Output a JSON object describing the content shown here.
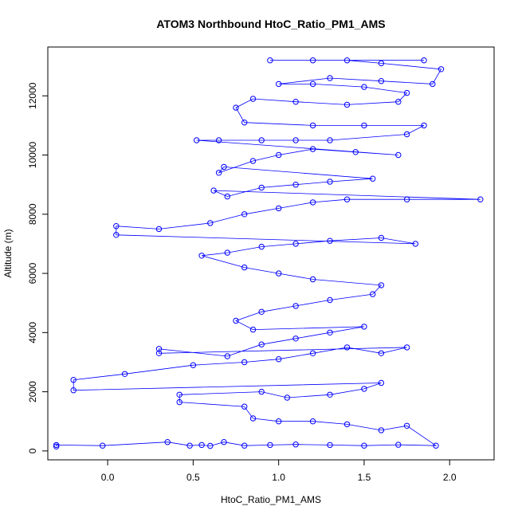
{
  "chart_data": {
    "type": "scatter",
    "title": "ATOM3 Northbound HtoC_Ratio_PM1_AMS",
    "xlabel": "HtoC_Ratio_PM1_AMS",
    "ylabel": "Altitude (m)",
    "xlim": [
      -0.35,
      2.26
    ],
    "ylim": [
      -300,
      13650
    ],
    "xticks": [
      0.0,
      0.5,
      1.0,
      1.5,
      2.0
    ],
    "xtick_labels": [
      "0.0",
      "0.5",
      "1.0",
      "1.5",
      "2.0"
    ],
    "yticks": [
      0,
      2000,
      4000,
      6000,
      8000,
      10000,
      12000
    ],
    "ytick_labels": [
      "0",
      "2000",
      "4000",
      "6000",
      "8000",
      "10000",
      "12000"
    ],
    "grid": false,
    "legend": "none",
    "marker": "open-circle",
    "connected_by_lines": true,
    "color": "#0000ff",
    "series": [
      {
        "points": [
          [
            -0.3,
            150
          ],
          [
            -0.3,
            200
          ],
          [
            -0.03,
            180
          ],
          [
            0.35,
            300
          ],
          [
            0.48,
            180
          ],
          [
            0.55,
            200
          ],
          [
            0.6,
            170
          ],
          [
            0.68,
            300
          ],
          [
            0.8,
            180
          ],
          [
            0.95,
            200
          ],
          [
            1.1,
            220
          ],
          [
            1.3,
            200
          ],
          [
            1.5,
            180
          ],
          [
            1.7,
            210
          ],
          [
            1.92,
            180
          ],
          [
            1.75,
            850
          ],
          [
            1.6,
            700
          ],
          [
            1.4,
            900
          ],
          [
            1.2,
            1000
          ],
          [
            1.0,
            1000
          ],
          [
            0.85,
            1100
          ],
          [
            0.8,
            1500
          ],
          [
            0.42,
            1650
          ],
          [
            0.42,
            1900
          ],
          [
            0.9,
            2000
          ],
          [
            1.05,
            1800
          ],
          [
            1.3,
            1900
          ],
          [
            1.5,
            2100
          ],
          [
            1.6,
            2300
          ],
          [
            -0.2,
            2050
          ],
          [
            -0.2,
            2400
          ],
          [
            0.1,
            2600
          ],
          [
            0.5,
            2900
          ],
          [
            0.8,
            3000
          ],
          [
            1.0,
            3100
          ],
          [
            1.2,
            3300
          ],
          [
            1.4,
            3500
          ],
          [
            1.6,
            3300
          ],
          [
            1.75,
            3500
          ],
          [
            0.3,
            3300
          ],
          [
            0.3,
            3450
          ],
          [
            0.7,
            3200
          ],
          [
            0.9,
            3600
          ],
          [
            1.1,
            3800
          ],
          [
            1.3,
            4000
          ],
          [
            1.5,
            4200
          ],
          [
            0.85,
            4100
          ],
          [
            0.75,
            4400
          ],
          [
            0.9,
            4700
          ],
          [
            1.1,
            4900
          ],
          [
            1.3,
            5100
          ],
          [
            1.55,
            5300
          ],
          [
            1.6,
            5600
          ],
          [
            1.2,
            5800
          ],
          [
            1.0,
            6000
          ],
          [
            0.8,
            6200
          ],
          [
            0.55,
            6600
          ],
          [
            0.7,
            6700
          ],
          [
            0.9,
            6900
          ],
          [
            1.1,
            7000
          ],
          [
            1.3,
            7100
          ],
          [
            1.6,
            7200
          ],
          [
            1.8,
            7000
          ],
          [
            0.05,
            7300
          ],
          [
            0.05,
            7600
          ],
          [
            0.3,
            7500
          ],
          [
            0.6,
            7700
          ],
          [
            0.8,
            8000
          ],
          [
            1.0,
            8200
          ],
          [
            1.2,
            8400
          ],
          [
            1.4,
            8500
          ],
          [
            1.75,
            8500
          ],
          [
            2.18,
            8500
          ],
          [
            0.62,
            8800
          ],
          [
            0.7,
            8600
          ],
          [
            0.9,
            8900
          ],
          [
            1.1,
            9000
          ],
          [
            1.3,
            9100
          ],
          [
            1.55,
            9200
          ],
          [
            0.68,
            9600
          ],
          [
            0.65,
            9400
          ],
          [
            0.85,
            9800
          ],
          [
            1.0,
            10000
          ],
          [
            1.2,
            10200
          ],
          [
            1.45,
            10100
          ],
          [
            1.7,
            10000
          ],
          [
            0.52,
            10500
          ],
          [
            0.65,
            10500
          ],
          [
            0.9,
            10500
          ],
          [
            1.1,
            10500
          ],
          [
            1.3,
            10500
          ],
          [
            1.75,
            10700
          ],
          [
            1.85,
            11000
          ],
          [
            1.5,
            11000
          ],
          [
            1.2,
            11000
          ],
          [
            0.8,
            11100
          ],
          [
            0.75,
            11600
          ],
          [
            0.85,
            11900
          ],
          [
            1.1,
            11800
          ],
          [
            1.4,
            11700
          ],
          [
            1.7,
            11800
          ],
          [
            1.75,
            12100
          ],
          [
            1.5,
            12300
          ],
          [
            1.2,
            12400
          ],
          [
            1.0,
            12400
          ],
          [
            1.3,
            12600
          ],
          [
            1.6,
            12500
          ],
          [
            1.9,
            12400
          ],
          [
            1.95,
            12900
          ],
          [
            1.6,
            13100
          ],
          [
            1.4,
            13200
          ],
          [
            1.2,
            13200
          ],
          [
            0.95,
            13200
          ],
          [
            1.85,
            13200
          ]
        ]
      }
    ]
  }
}
